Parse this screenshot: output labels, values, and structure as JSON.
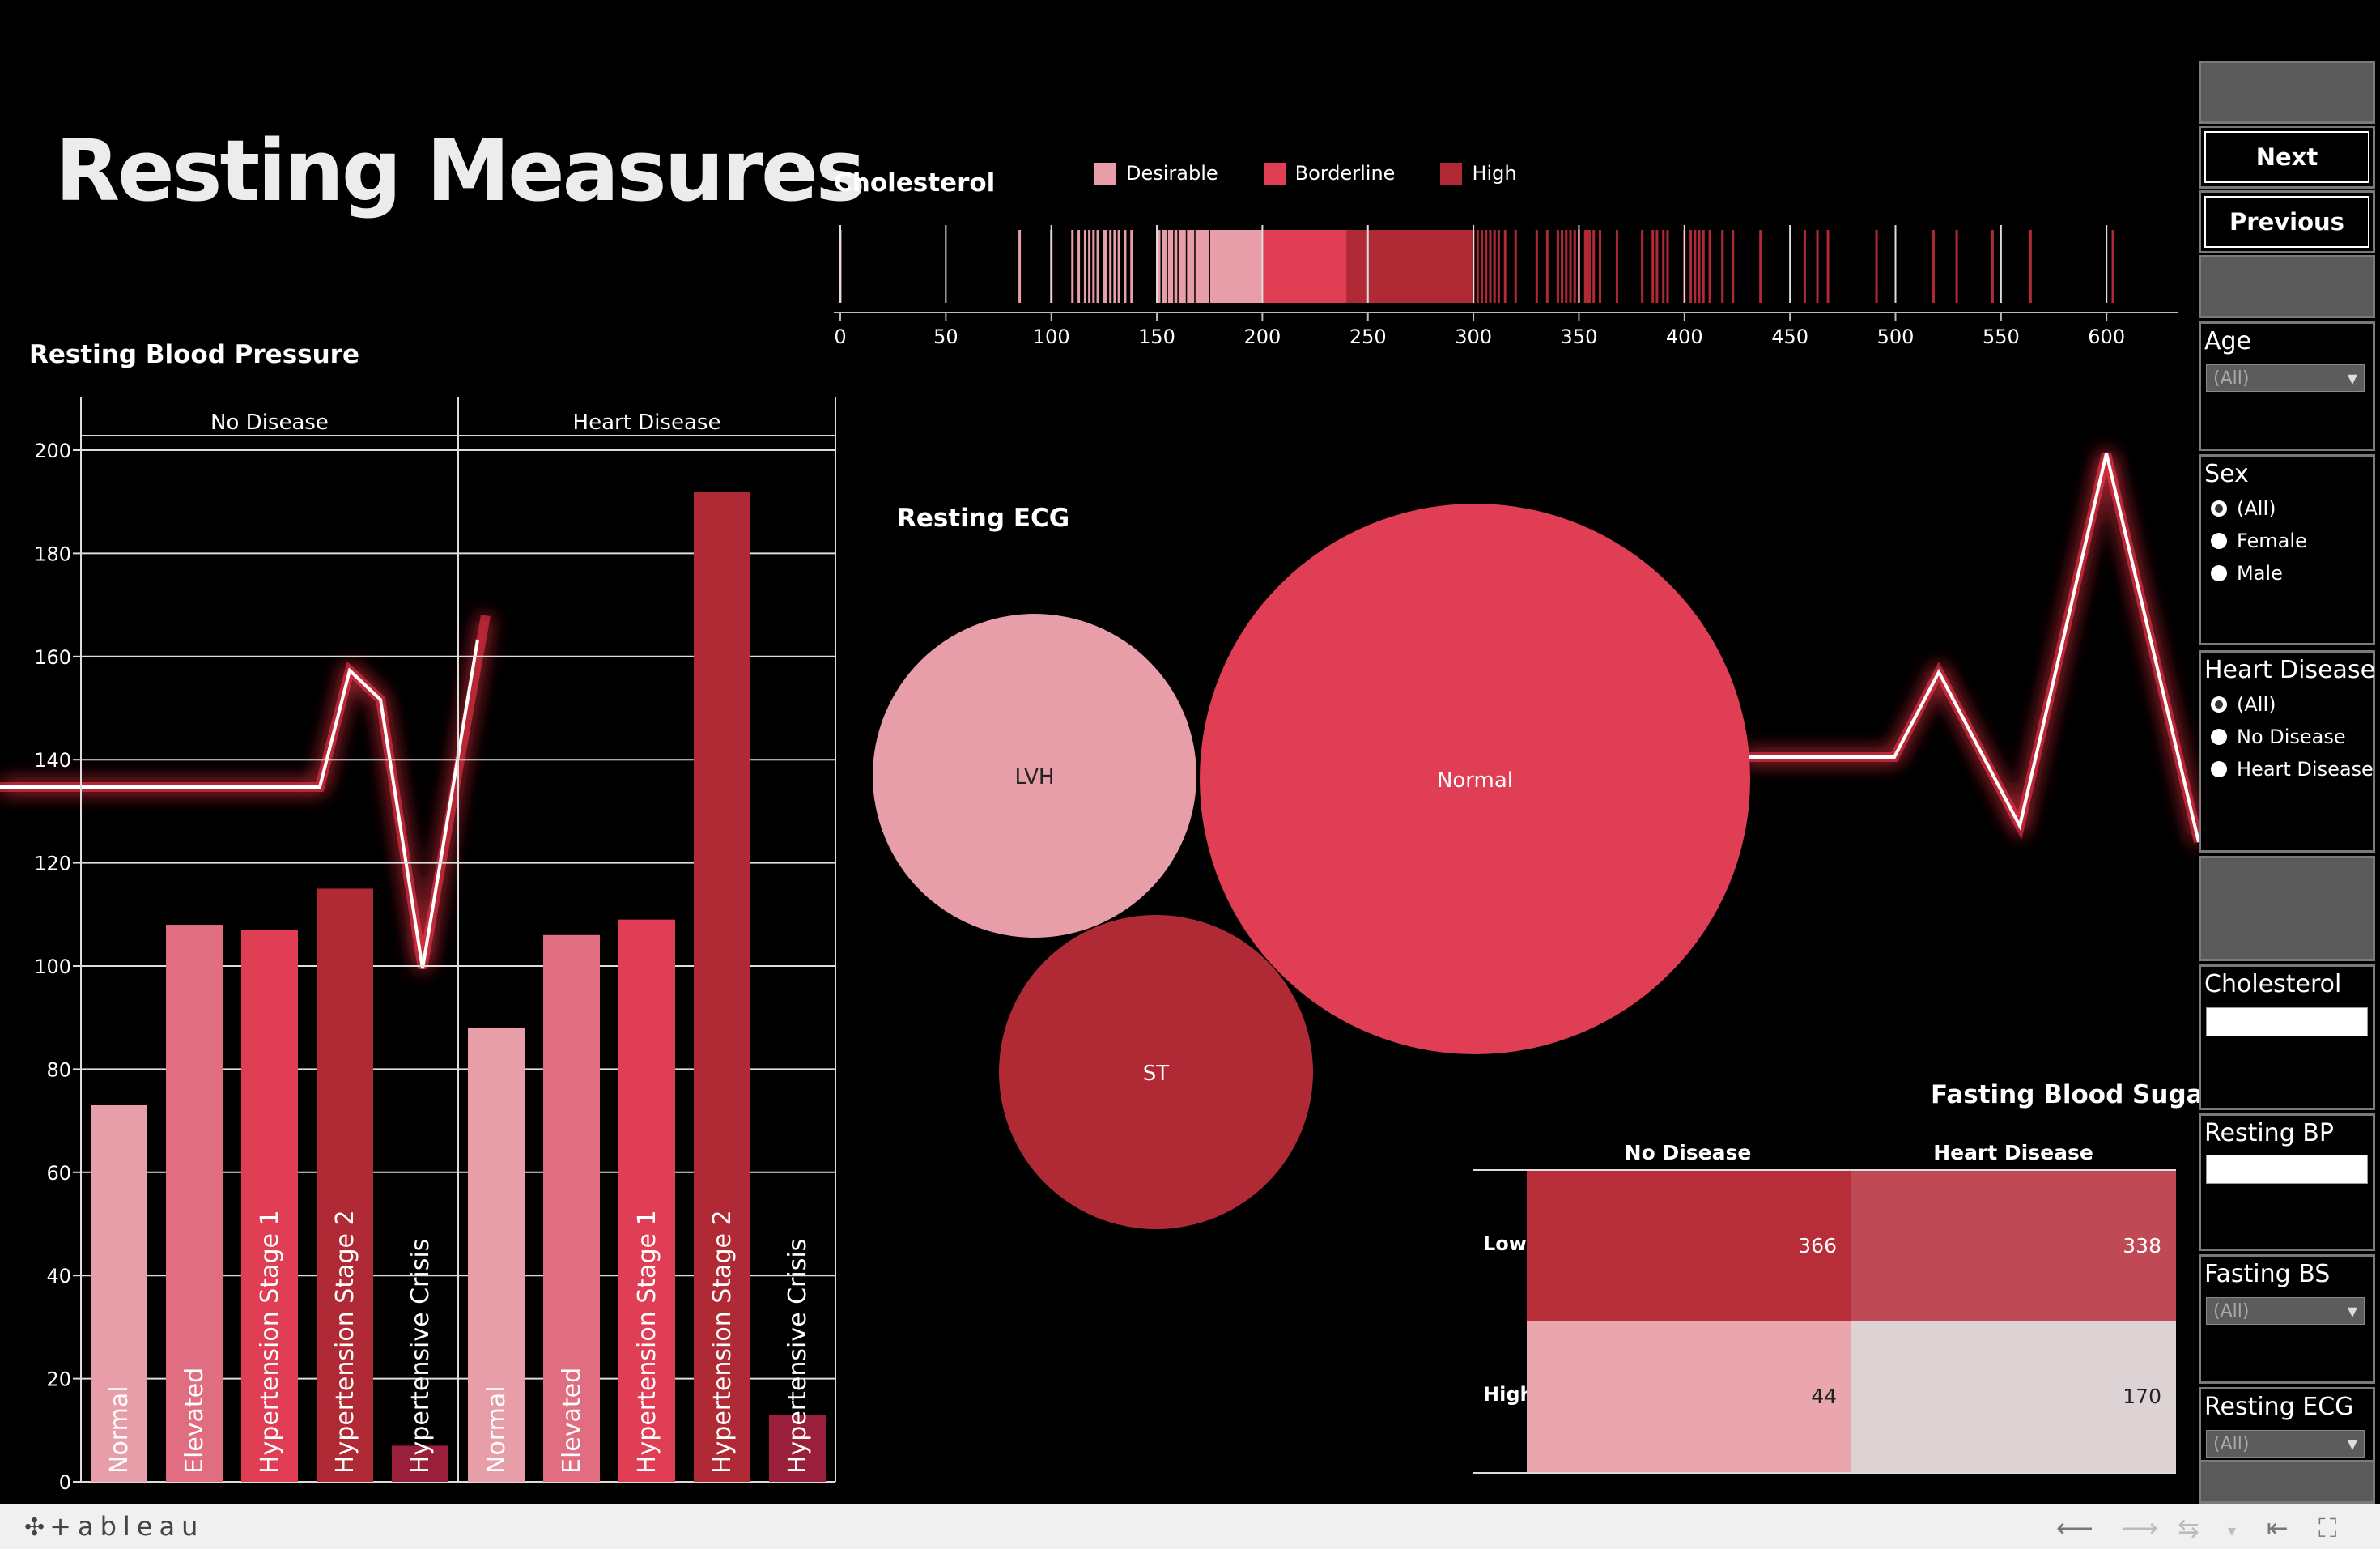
{
  "title": "Resting Measures",
  "colors": {
    "pink_light": "#e89ea8",
    "pink_mid": "#e06e80",
    "red": "#e03e55",
    "dark_red": "#b02a35",
    "crimson": "#9a1f3a",
    "fbs_low_nd": "#b82d3a",
    "fbs_low_hd": "#c04956",
    "fbs_high_nd": "#eaa6ad",
    "fbs_high_hd": "#ddd3d5"
  },
  "cholesterol": {
    "title": "Cholesterol",
    "legend": [
      {
        "label": "Desirable",
        "color": "#e89ea8"
      },
      {
        "label": "Borderline",
        "color": "#e03e55"
      },
      {
        "label": "High",
        "color": "#b02a35"
      }
    ],
    "ticks": [
      "0",
      "50",
      "100",
      "150",
      "200",
      "250",
      "300",
      "350",
      "400",
      "450",
      "500",
      "550",
      "600"
    ]
  },
  "bp": {
    "title": "Resting Blood Pressure",
    "groups": [
      "No Disease",
      "Heart Disease"
    ],
    "y_ticks": [
      "0",
      "20",
      "40",
      "60",
      "80",
      "100",
      "120",
      "140",
      "160",
      "180",
      "200"
    ]
  },
  "ecg": {
    "title": "Resting ECG",
    "bubbles": [
      {
        "label": "LVH",
        "color": "#e89ea8",
        "text_color": "#222"
      },
      {
        "label": "Normal",
        "color": "#e03e55",
        "text_color": "#fff"
      },
      {
        "label": "ST",
        "color": "#b02a35",
        "text_color": "#fff"
      }
    ]
  },
  "fbs": {
    "title": "Fasting Blood Sugar",
    "columns": [
      "No Disease",
      "Heart Disease"
    ],
    "rows": [
      {
        "label": "Low",
        "values": [
          "366",
          "338"
        ]
      },
      {
        "label": "High",
        "values": [
          "44",
          "170"
        ]
      }
    ]
  },
  "panel": {
    "next": "Next",
    "previous": "Previous",
    "age_label": "Age",
    "age_value": "(All)",
    "sex_label": "Sex",
    "sex_options": [
      "(All)",
      "Female",
      "Male"
    ],
    "hd_label": "Heart Disease",
    "hd_options": [
      "(All)",
      "No Disease",
      "Heart Disease"
    ],
    "chol_label": "Cholesterol",
    "rbp_label": "Resting BP",
    "fbs_label": "Fasting BS",
    "fbs_value": "(All)",
    "recg_label": "Resting ECG",
    "recg_value": "(All)"
  },
  "footer": {
    "logo": "+ableau",
    "icons": [
      "undo-icon",
      "redo-icon",
      "revert-icon",
      "dropdown-icon",
      "first-icon",
      "fullscreen-icon"
    ]
  },
  "chart_data": [
    {
      "type": "bar",
      "title": "Resting Blood Pressure",
      "ylim": [
        0,
        200
      ],
      "grid": true,
      "panels": [
        {
          "name": "No Disease",
          "categories": [
            "Normal",
            "Elevated",
            "Hypertension Stage 1",
            "Hypertension Stage 2",
            "Hypertensive Crisis"
          ],
          "values": [
            73,
            108,
            107,
            115,
            7
          ],
          "colors": [
            "#e89ea8",
            "#e06e80",
            "#e03e55",
            "#b02a35",
            "#9a1f3a"
          ]
        },
        {
          "name": "Heart Disease",
          "categories": [
            "Normal",
            "Elevated",
            "Hypertension Stage 1",
            "Hypertension Stage 2",
            "Hypertensive Crisis"
          ],
          "values": [
            88,
            106,
            109,
            192,
            13
          ],
          "colors": [
            "#e89ea8",
            "#e06e80",
            "#e03e55",
            "#b02a35",
            "#9a1f3a"
          ]
        }
      ]
    },
    {
      "type": "strip",
      "title": "Cholesterol",
      "xlim": [
        0,
        620
      ],
      "bands": [
        {
          "label": "Desirable",
          "from": 150,
          "to": 200,
          "color": "#e89ea8"
        },
        {
          "label": "Borderline",
          "from": 200,
          "to": 240,
          "color": "#e03e55"
        },
        {
          "label": "High",
          "from": 240,
          "to": 300,
          "color": "#b02a35"
        }
      ],
      "values": [
        0,
        85,
        100,
        110,
        113,
        116,
        118,
        120,
        122,
        125,
        126,
        128,
        130,
        132,
        135,
        138,
        150,
        152,
        155,
        158,
        160,
        164,
        168,
        175,
        300,
        302,
        304,
        306,
        308,
        310,
        312,
        315,
        320,
        330,
        335,
        340,
        342,
        344,
        346,
        348,
        350,
        353,
        354,
        355,
        357,
        360,
        368,
        380,
        385,
        387,
        390,
        392,
        400,
        403,
        405,
        407,
        409,
        412,
        418,
        423,
        436,
        457,
        463,
        468,
        491,
        518,
        529,
        546,
        564,
        603
      ]
    },
    {
      "type": "bubble",
      "title": "Resting ECG",
      "categories": [
        "LVH",
        "Normal",
        "ST"
      ],
      "values": [
        188,
        552,
        178
      ]
    },
    {
      "type": "heatmap",
      "title": "Fasting Blood Sugar",
      "x": [
        "No Disease",
        "Heart Disease"
      ],
      "y": [
        "Low",
        "High"
      ],
      "values": [
        [
          366,
          338
        ],
        [
          44,
          170
        ]
      ]
    }
  ]
}
